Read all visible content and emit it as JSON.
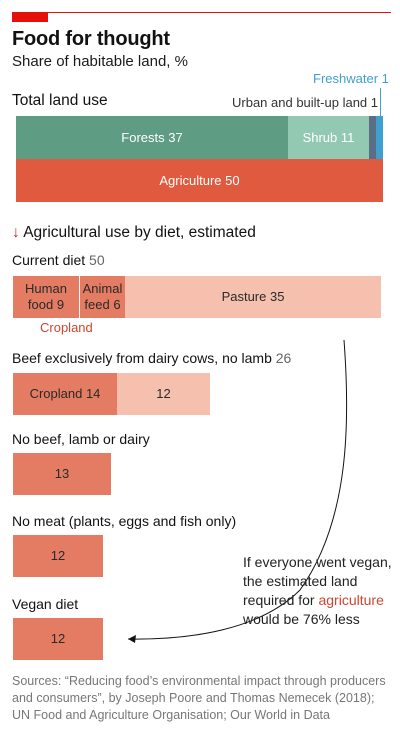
{
  "title": "Food for thought",
  "subtitle": "Share of habitable land, %",
  "total": {
    "heading": "Total land use",
    "freshwater_label": "Freshwater",
    "freshwater_value": "1",
    "urban_label": "Urban and built-up land",
    "urban_value": "1",
    "forests_label": "Forests",
    "forests_value": "37",
    "shrub_label": "Shrub",
    "shrub_value": "11",
    "agriculture_label": "Agriculture",
    "agriculture_value": "50"
  },
  "diet": {
    "heading": "Agricultural use by diet, estimated",
    "current_label": "Current diet",
    "current_value": "50",
    "human_food_label": "Human food 9",
    "animal_feed_label": "Animal feed 6",
    "pasture_label": "Pasture 35",
    "cropland_label": "Cropland",
    "dairy_label": "Beef exclusively from dairy cows, no lamb",
    "dairy_value": "26",
    "dairy_cropland_label": "Cropland 14",
    "dairy_pasture_value": "12",
    "nobeef_label": "No beef, lamb or dairy",
    "nobeef_value": "13",
    "nomeat_label": "No meat (plants, eggs and fish only)",
    "nomeat_value": "12",
    "vegan_label": "Vegan diet",
    "vegan_value": "12"
  },
  "note": {
    "pre": "If everyone went vegan, the estimated land required for",
    "highlight": "agriculture",
    "post": "would be 76% less"
  },
  "source": "Sources: “Reducing food’s environmental impact through producers and consumers”, by Joseph Poore and Thomas Nemecek (2018); UN Food and Agriculture Organisation; Our World in Data",
  "colors": {
    "accent": "#e3120b",
    "forests": "#5e9c83",
    "shrub": "#93c9b3",
    "urban": "#5a6e86",
    "freshwater": "#3fa0cf",
    "agriculture": "#df5a3e",
    "cropland": "#e37c63",
    "pasture": "#f5c0ae"
  },
  "chart_data": [
    {
      "type": "bar",
      "title": "Total land use",
      "stacked": true,
      "series": [
        {
          "name": "Forests",
          "value": 37
        },
        {
          "name": "Shrub",
          "value": 11
        },
        {
          "name": "Urban and built-up land",
          "value": 1
        },
        {
          "name": "Freshwater",
          "value": 1
        },
        {
          "name": "Agriculture",
          "value": 50
        }
      ]
    },
    {
      "type": "bar",
      "title": "Agricultural use by diet, estimated",
      "categories": [
        "Current diet",
        "Beef exclusively from dairy cows, no lamb",
        "No beef, lamb or dairy",
        "No meat (plants, eggs and fish only)",
        "Vegan diet"
      ],
      "totals": [
        50,
        26,
        13,
        12,
        12
      ],
      "series": [
        {
          "name": "Human food",
          "values": [
            9,
            null,
            null,
            null,
            null
          ]
        },
        {
          "name": "Animal feed",
          "values": [
            6,
            null,
            null,
            null,
            null
          ]
        },
        {
          "name": "Cropland",
          "values": [
            15,
            14,
            13,
            12,
            12
          ]
        },
        {
          "name": "Pasture",
          "values": [
            35,
            12,
            0,
            0,
            0
          ]
        }
      ]
    }
  ]
}
